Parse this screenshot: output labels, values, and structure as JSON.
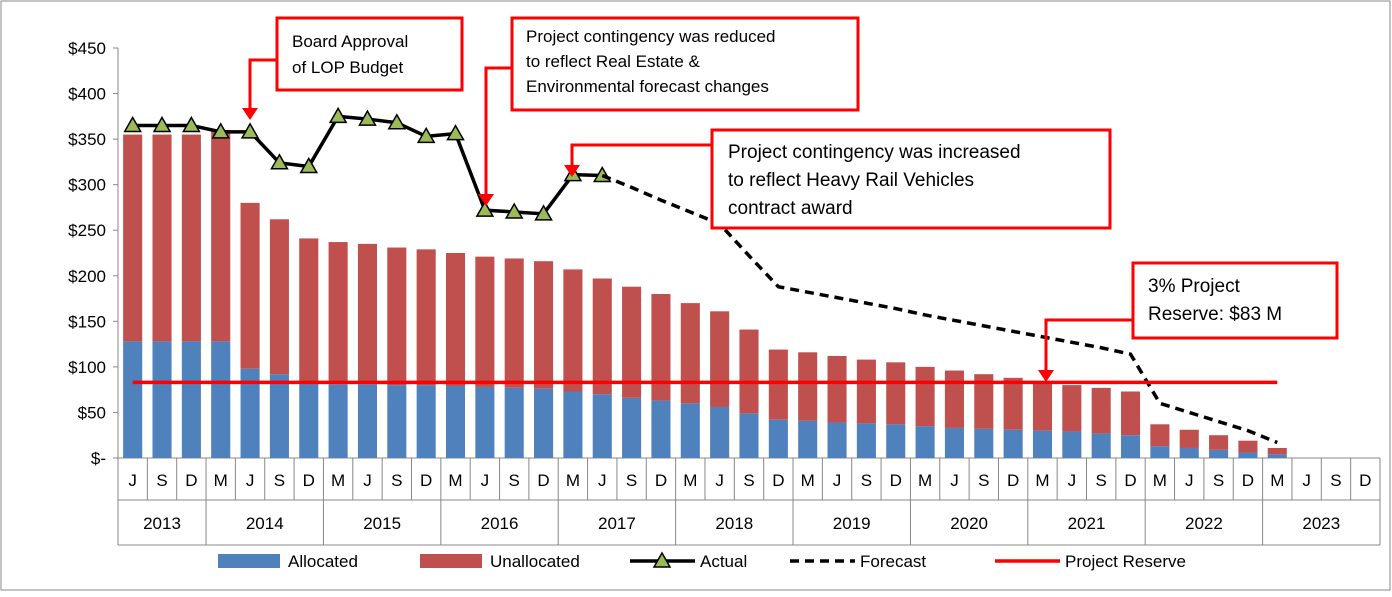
{
  "chart_data": {
    "type": "bar",
    "stacked": true,
    "categories": [
      "J",
      "S",
      "D",
      "M",
      "J",
      "S",
      "D",
      "M",
      "J",
      "S",
      "D",
      "M",
      "J",
      "S",
      "D",
      "M",
      "J",
      "S",
      "D",
      "M",
      "J",
      "S",
      "D",
      "M",
      "J",
      "S",
      "D",
      "M",
      "J",
      "S",
      "D",
      "M",
      "J",
      "S",
      "D",
      "M",
      "J",
      "S",
      "D",
      "M",
      "J",
      "S",
      "D"
    ],
    "years": [
      "2013",
      "2013",
      "2013",
      "2014",
      "2014",
      "2014",
      "2014",
      "2015",
      "2015",
      "2015",
      "2015",
      "2016",
      "2016",
      "2016",
      "2016",
      "2017",
      "2017",
      "2017",
      "2017",
      "2018",
      "2018",
      "2018",
      "2018",
      "2019",
      "2019",
      "2019",
      "2019",
      "2020",
      "2020",
      "2020",
      "2020",
      "2021",
      "2021",
      "2021",
      "2021",
      "2022",
      "2022",
      "2022",
      "2022",
      "2023",
      "2023",
      "2023",
      "2023"
    ],
    "ylim": [
      0,
      450
    ],
    "yticks": [
      {
        "value": 0,
        "label": "$-"
      },
      {
        "value": 50,
        "label": "$50"
      },
      {
        "value": 100,
        "label": "$100"
      },
      {
        "value": 150,
        "label": "$150"
      },
      {
        "value": 200,
        "label": "$200"
      },
      {
        "value": 250,
        "label": "$250"
      },
      {
        "value": 300,
        "label": "$300"
      },
      {
        "value": 350,
        "label": "$350"
      },
      {
        "value": 400,
        "label": "$400"
      },
      {
        "value": 450,
        "label": "$450"
      }
    ],
    "grid": false,
    "series": [
      {
        "name": "Allocated",
        "type": "bar",
        "color": "#4f81bd",
        "values": [
          128,
          128,
          128,
          128,
          98,
          92,
          82,
          81,
          81,
          80,
          80,
          79,
          78,
          77,
          76,
          73,
          70,
          66,
          63,
          60,
          56,
          49,
          42,
          41,
          39,
          38,
          37,
          35,
          33,
          32,
          31,
          30,
          29,
          27,
          25,
          13,
          11,
          9,
          6,
          4,
          null,
          null,
          null
        ]
      },
      {
        "name": "Unallocated",
        "type": "bar",
        "color": "#c0504d",
        "values": [
          227,
          227,
          227,
          232,
          182,
          170,
          159,
          156,
          154,
          151,
          149,
          146,
          143,
          142,
          140,
          134,
          127,
          122,
          117,
          110,
          105,
          92,
          77,
          75,
          73,
          70,
          68,
          65,
          63,
          60,
          57,
          54,
          51,
          50,
          48,
          24,
          20,
          16,
          13,
          7,
          null,
          null,
          null
        ]
      },
      {
        "name": "Actual",
        "type": "line",
        "color": "#000000",
        "marker": "triangle",
        "marker_color": "#9bbb59",
        "values": [
          365,
          365,
          365,
          358,
          358,
          324,
          320,
          375,
          372,
          368,
          353,
          356,
          272,
          270,
          268,
          311,
          310,
          null,
          null,
          null,
          null,
          null,
          null,
          null,
          null,
          null,
          null,
          null,
          null,
          null,
          null,
          null,
          null,
          null,
          null,
          null,
          null,
          null,
          null,
          null,
          null,
          null,
          null
        ]
      },
      {
        "name": "Forecast",
        "type": "line",
        "color": "#000000",
        "dashed": true,
        "values": [
          null,
          null,
          null,
          null,
          null,
          null,
          null,
          null,
          null,
          null,
          null,
          null,
          null,
          null,
          null,
          null,
          310,
          297,
          283,
          270,
          257,
          222,
          188,
          182,
          176,
          170,
          164,
          157,
          151,
          145,
          139,
          133,
          127,
          121,
          114,
          60,
          50,
          40,
          30,
          17,
          null,
          null,
          null
        ]
      },
      {
        "name": "Project Reserve",
        "type": "line",
        "color": "#ff0000",
        "values": [
          83,
          83,
          83,
          83,
          83,
          83,
          83,
          83,
          83,
          83,
          83,
          83,
          83,
          83,
          83,
          83,
          83,
          83,
          83,
          83,
          83,
          83,
          83,
          83,
          83,
          83,
          83,
          83,
          83,
          83,
          83,
          83,
          83,
          83,
          83,
          83,
          83,
          83,
          83,
          83,
          null,
          null,
          null
        ]
      }
    ],
    "annotations": [
      {
        "lines": [
          "Board Approval",
          "of LOP Budget"
        ]
      },
      {
        "lines": [
          "Project contingency was reduced",
          "to reflect Real Estate &",
          "Environmental forecast changes"
        ]
      },
      {
        "lines": [
          "Project contingency was increased",
          "to reflect Heavy Rail Vehicles",
          "contract award"
        ]
      },
      {
        "lines": [
          "3% Project",
          "Reserve: $83 M"
        ]
      }
    ]
  }
}
